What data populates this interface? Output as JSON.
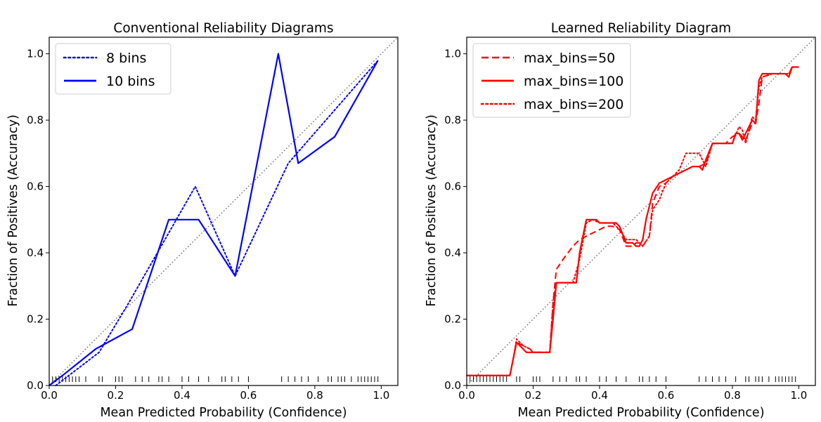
{
  "chart_data": [
    {
      "type": "line",
      "title": "Conventional Reliability Diagrams",
      "xlabel": "Mean Predicted Probability (Confidence)",
      "ylabel": "Fraction of Positives (Accuracy)",
      "xlim": [
        0,
        1.05
      ],
      "ylim": [
        0,
        1.05
      ],
      "xticks": [
        "0.0",
        "0.2",
        "0.4",
        "0.6",
        "0.8",
        "1.0"
      ],
      "yticks": [
        "0.0",
        "0.2",
        "0.4",
        "0.6",
        "0.8",
        "1.0"
      ],
      "grid": false,
      "legend_position": "top-left",
      "diagonal": true,
      "series": [
        {
          "name": "8 bins",
          "style": "dotted",
          "color": "#0000ff",
          "x": [
            0.02,
            0.15,
            0.24,
            0.44,
            0.56,
            0.72,
            0.99
          ],
          "y": [
            0.0,
            0.1,
            0.25,
            0.6,
            0.33,
            0.67,
            0.98
          ]
        },
        {
          "name": "10 bins",
          "style": "solid",
          "color": "#0000ff",
          "x": [
            0.0,
            0.04,
            0.14,
            0.25,
            0.36,
            0.45,
            0.56,
            0.69,
            0.75,
            0.86,
            0.99
          ],
          "y": [
            0.0,
            0.03,
            0.11,
            0.17,
            0.5,
            0.5,
            0.33,
            1.0,
            0.67,
            0.75,
            0.98
          ]
        }
      ],
      "rug": [
        0.01,
        0.02,
        0.03,
        0.04,
        0.05,
        0.06,
        0.07,
        0.08,
        0.09,
        0.11,
        0.15,
        0.16,
        0.2,
        0.21,
        0.22,
        0.26,
        0.28,
        0.3,
        0.33,
        0.34,
        0.36,
        0.4,
        0.42,
        0.45,
        0.48,
        0.52,
        0.53,
        0.55,
        0.57,
        0.6,
        0.7,
        0.72,
        0.74,
        0.76,
        0.78,
        0.81,
        0.84,
        0.85,
        0.87,
        0.88,
        0.89,
        0.91,
        0.93,
        0.94,
        0.95,
        0.96,
        0.97,
        0.98,
        0.99
      ]
    },
    {
      "type": "line",
      "title": "Learned Reliability Diagram",
      "xlabel": "Mean Predicted Probability (Confidence)",
      "ylabel": "Fraction of Positives (Accuracy)",
      "xlim": [
        0,
        1.05
      ],
      "ylim": [
        0,
        1.05
      ],
      "xticks": [
        "0.0",
        "0.2",
        "0.4",
        "0.6",
        "0.8",
        "1.0"
      ],
      "yticks": [
        "0.0",
        "0.2",
        "0.4",
        "0.6",
        "0.8",
        "1.0"
      ],
      "grid": false,
      "legend_position": "top-left",
      "diagonal": true,
      "series": [
        {
          "name": "max_bins=50",
          "style": "dashed",
          "color": "#ff0000",
          "x": [
            0.0,
            0.13,
            0.14,
            0.15,
            0.17,
            0.19,
            0.2,
            0.22,
            0.25,
            0.26,
            0.27,
            0.29,
            0.32,
            0.34,
            0.36,
            0.38,
            0.4,
            0.42,
            0.44,
            0.46,
            0.48,
            0.5,
            0.51,
            0.52,
            0.53,
            0.55,
            0.56,
            0.58,
            0.6,
            0.62,
            0.64,
            0.66,
            0.68,
            0.7,
            0.72,
            0.74,
            0.76,
            0.78,
            0.8,
            0.82,
            0.83,
            0.84,
            0.86,
            0.87,
            0.88,
            0.89,
            0.92,
            0.95,
            0.97,
            0.98,
            1.0
          ],
          "y": [
            0.03,
            0.03,
            0.08,
            0.13,
            0.12,
            0.11,
            0.1,
            0.1,
            0.1,
            0.25,
            0.35,
            0.38,
            0.42,
            0.44,
            0.45,
            0.46,
            0.47,
            0.48,
            0.48,
            0.47,
            0.42,
            0.42,
            0.43,
            0.43,
            0.42,
            0.45,
            0.55,
            0.6,
            0.61,
            0.63,
            0.64,
            0.65,
            0.66,
            0.66,
            0.67,
            0.73,
            0.73,
            0.73,
            0.75,
            0.76,
            0.75,
            0.74,
            0.79,
            0.79,
            0.85,
            0.93,
            0.94,
            0.94,
            0.94,
            0.96,
            0.96
          ]
        },
        {
          "name": "max_bins=100",
          "style": "solid",
          "color": "#ff0000",
          "x": [
            0.0,
            0.12,
            0.13,
            0.14,
            0.15,
            0.16,
            0.18,
            0.2,
            0.22,
            0.25,
            0.26,
            0.27,
            0.3,
            0.33,
            0.34,
            0.36,
            0.38,
            0.39,
            0.4,
            0.41,
            0.43,
            0.45,
            0.46,
            0.48,
            0.5,
            0.51,
            0.52,
            0.53,
            0.54,
            0.56,
            0.58,
            0.6,
            0.62,
            0.64,
            0.66,
            0.68,
            0.7,
            0.71,
            0.72,
            0.74,
            0.76,
            0.78,
            0.8,
            0.81,
            0.82,
            0.83,
            0.84,
            0.86,
            0.87,
            0.88,
            0.89,
            0.92,
            0.95,
            0.96,
            0.97,
            0.98,
            1.0
          ],
          "y": [
            0.03,
            0.03,
            0.03,
            0.08,
            0.13,
            0.12,
            0.1,
            0.1,
            0.1,
            0.1,
            0.2,
            0.31,
            0.31,
            0.31,
            0.4,
            0.5,
            0.5,
            0.5,
            0.49,
            0.49,
            0.49,
            0.49,
            0.48,
            0.43,
            0.43,
            0.42,
            0.42,
            0.44,
            0.5,
            0.58,
            0.61,
            0.62,
            0.63,
            0.64,
            0.65,
            0.66,
            0.66,
            0.65,
            0.68,
            0.73,
            0.73,
            0.73,
            0.73,
            0.76,
            0.76,
            0.74,
            0.76,
            0.8,
            0.79,
            0.92,
            0.94,
            0.94,
            0.94,
            0.94,
            0.93,
            0.96,
            0.96
          ]
        },
        {
          "name": "max_bins=200",
          "style": "dotted",
          "color": "#ff0000",
          "x": [
            0.0,
            0.13,
            0.14,
            0.15,
            0.17,
            0.19,
            0.2,
            0.22,
            0.25,
            0.26,
            0.27,
            0.29,
            0.32,
            0.34,
            0.36,
            0.38,
            0.4,
            0.42,
            0.44,
            0.46,
            0.48,
            0.5,
            0.51,
            0.52,
            0.53,
            0.55,
            0.56,
            0.58,
            0.6,
            0.62,
            0.64,
            0.66,
            0.68,
            0.7,
            0.72,
            0.74,
            0.76,
            0.78,
            0.8,
            0.82,
            0.83,
            0.84,
            0.86,
            0.87,
            0.88,
            0.89,
            0.92,
            0.95,
            0.97,
            0.98,
            1.0
          ],
          "y": [
            0.03,
            0.03,
            0.08,
            0.14,
            0.12,
            0.11,
            0.1,
            0.1,
            0.1,
            0.25,
            0.31,
            0.31,
            0.31,
            0.38,
            0.49,
            0.5,
            0.49,
            0.49,
            0.49,
            0.47,
            0.44,
            0.44,
            0.44,
            0.43,
            0.42,
            0.45,
            0.53,
            0.56,
            0.61,
            0.63,
            0.65,
            0.7,
            0.7,
            0.7,
            0.66,
            0.73,
            0.73,
            0.73,
            0.73,
            0.78,
            0.77,
            0.73,
            0.81,
            0.8,
            0.9,
            0.93,
            0.94,
            0.94,
            0.94,
            0.96,
            0.96
          ]
        }
      ],
      "rug": [
        0.01,
        0.02,
        0.03,
        0.04,
        0.05,
        0.06,
        0.07,
        0.08,
        0.09,
        0.1,
        0.11,
        0.12,
        0.15,
        0.16,
        0.2,
        0.21,
        0.22,
        0.26,
        0.28,
        0.3,
        0.33,
        0.34,
        0.36,
        0.4,
        0.42,
        0.45,
        0.48,
        0.52,
        0.53,
        0.55,
        0.57,
        0.6,
        0.7,
        0.72,
        0.74,
        0.76,
        0.78,
        0.81,
        0.84,
        0.85,
        0.87,
        0.88,
        0.89,
        0.91,
        0.93,
        0.94,
        0.95,
        0.96,
        0.97,
        0.98,
        0.99
      ]
    }
  ]
}
